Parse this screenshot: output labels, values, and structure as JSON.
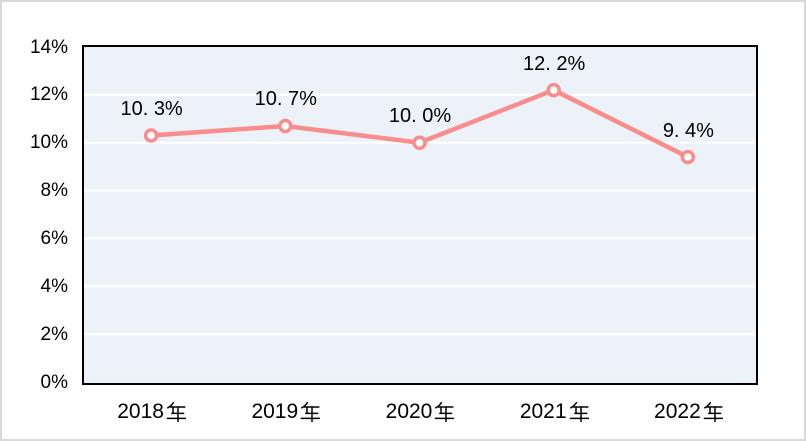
{
  "style": {
    "line_color": "#F98C8C",
    "marker_fill": "#FFFFFF",
    "plot_bg": "#ECF2F8",
    "grid_color": "#FFFFFF",
    "plot_border_color": "#000000",
    "frame_border_color": "#D9D9D9",
    "text_color": "#000000"
  },
  "chart_data": {
    "type": "line",
    "title": "",
    "xlabel": "",
    "ylabel": "",
    "categories": [
      "2018年",
      "2019年",
      "2020年",
      "2021年",
      "2022年"
    ],
    "category_numbers": [
      "2018",
      "2019",
      "2020",
      "2021",
      "2022"
    ],
    "category_suffix": "年",
    "series": [
      {
        "name": "",
        "values": [
          10.3,
          10.7,
          10.0,
          12.2,
          9.4
        ]
      }
    ],
    "point_labels": [
      "10. 3%",
      "10. 7%",
      "10. 0%",
      "12. 2%",
      "9. 4%"
    ],
    "ylim": [
      0,
      14
    ],
    "ytick_step": 2,
    "ytick_values": [
      0,
      2,
      4,
      6,
      8,
      10,
      12,
      14
    ],
    "ytick_labels": [
      "0%",
      "2%",
      "4%",
      "6%",
      "8%",
      "10%",
      "12%",
      "14%"
    ],
    "grid": true,
    "gridline_values": [
      2,
      4,
      6,
      8,
      10,
      12
    ],
    "legend_position": "none",
    "marker_style": "open-circle"
  }
}
